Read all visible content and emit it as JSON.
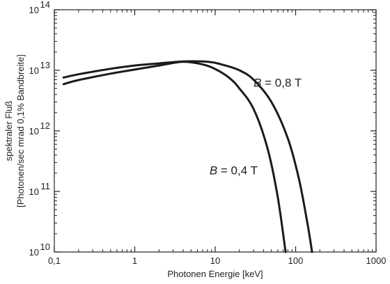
{
  "chart_data": {
    "type": "line",
    "xlabel": "Photonen Energie [keV]",
    "ylabel": [
      "spektraler Fluß",
      "[Photonen/sec mrad 0,1% Bandbreite]"
    ],
    "x_scale": "log",
    "y_scale": "log",
    "xlim": [
      0.1,
      1000
    ],
    "ylim": [
      10000000000.0,
      100000000000000.0
    ],
    "x_ticks": [
      0.1,
      1,
      10,
      100,
      1000
    ],
    "x_tick_labels": [
      "0,1",
      "1",
      "10",
      "100",
      "1000"
    ],
    "y_ticks": [
      10000000000.0,
      100000000000.0,
      1000000000000.0,
      10000000000000.0,
      100000000000000.0
    ],
    "y_tick_labels": [
      {
        "base": "10",
        "exp": "10"
      },
      {
        "base": "10",
        "exp": "11"
      },
      {
        "base": "10",
        "exp": "12"
      },
      {
        "base": "10",
        "exp": "13"
      },
      {
        "base": "10",
        "exp": "14"
      }
    ],
    "grid": false,
    "series": [
      {
        "name": "B = 0,8 T",
        "points": [
          [
            0.13,
            7600000000000.0
          ],
          [
            0.2,
            8600000000000.0
          ],
          [
            0.5,
            10600000000000.0
          ],
          [
            1,
            12000000000000.0
          ],
          [
            2,
            13000000000000.0
          ],
          [
            4,
            14000000000000.0
          ],
          [
            8,
            13800000000000.0
          ],
          [
            12,
            12500000000000.0
          ],
          [
            20,
            10000000000000.0
          ],
          [
            30,
            7000000000000.0
          ],
          [
            50,
            3000000000000.0
          ],
          [
            80,
            750000000000.0
          ],
          [
            110,
            160000000000.0
          ],
          [
            140,
            30000000000.0
          ],
          [
            160,
            10000000000.0
          ]
        ]
      },
      {
        "name": "B = 0,4 T",
        "points": [
          [
            0.13,
            5900000000000.0
          ],
          [
            0.2,
            6900000000000.0
          ],
          [
            0.5,
            8800000000000.0
          ],
          [
            1,
            10300000000000.0
          ],
          [
            2,
            12000000000000.0
          ],
          [
            4,
            13800000000000.0
          ],
          [
            7,
            12500000000000.0
          ],
          [
            10,
            10500000000000.0
          ],
          [
            15,
            7500000000000.0
          ],
          [
            20,
            5000000000000.0
          ],
          [
            30,
            2300000000000.0
          ],
          [
            45,
            500000000000.0
          ],
          [
            60,
            80000000000.0
          ],
          [
            75,
            10000000000.0
          ]
        ]
      }
    ],
    "annotations": [
      {
        "text": "B = 0,8 T",
        "series": 0
      },
      {
        "text": "B = 0,4 T",
        "series": 1
      }
    ]
  }
}
